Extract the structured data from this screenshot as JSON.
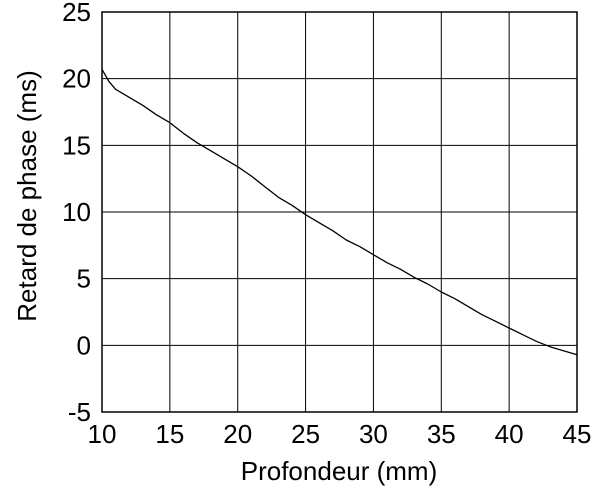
{
  "chart_data": {
    "type": "line",
    "title": "",
    "xlabel": "Profondeur (mm)",
    "ylabel": "Retard de phase (ms)",
    "xlim": [
      10,
      45
    ],
    "ylim": [
      -5,
      25
    ],
    "grid": true,
    "xticks": [
      "10",
      "15",
      "20",
      "25",
      "30",
      "35",
      "40",
      "45"
    ],
    "yticks": [
      "-5",
      "0",
      "5",
      "10",
      "15",
      "20",
      "25"
    ],
    "series": [
      {
        "color": "#000000",
        "x": [
          10,
          10.5,
          11,
          12,
          13,
          14,
          15,
          16,
          17,
          18,
          19,
          20,
          21,
          22,
          23,
          24,
          25,
          26,
          27,
          28,
          29,
          30,
          31,
          32,
          33,
          34,
          35,
          36,
          37,
          38,
          39,
          40,
          41,
          42,
          43,
          44,
          45
        ],
        "y": [
          20.7,
          19.8,
          19.2,
          18.6,
          18.0,
          17.3,
          16.7,
          15.9,
          15.2,
          14.6,
          14.0,
          13.4,
          12.7,
          11.9,
          11.1,
          10.5,
          9.8,
          9.2,
          8.6,
          7.9,
          7.4,
          6.8,
          6.2,
          5.7,
          5.1,
          4.6,
          4.0,
          3.5,
          2.9,
          2.3,
          1.8,
          1.3,
          0.8,
          0.3,
          -0.1,
          -0.4,
          -0.7
        ]
      }
    ]
  }
}
